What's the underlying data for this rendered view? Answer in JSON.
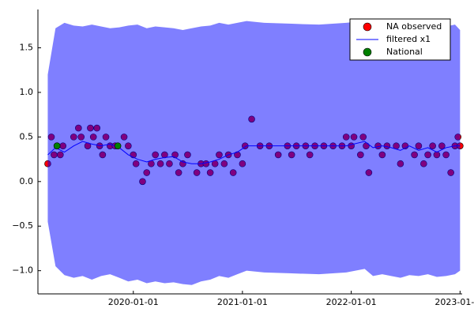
{
  "chart_data": {
    "type": "scatter",
    "xlim": [
      "2019-02-15",
      "2023-01-08"
    ],
    "xticks": [
      "2020-01-01",
      "2021-01-01",
      "2022-01-01",
      "2023-01-01"
    ],
    "ylim": [
      -1.26,
      1.93
    ],
    "yticks": [
      {
        "value": -1,
        "label": "−1.0"
      },
      {
        "value": -0.5,
        "label": "−0.5"
      },
      {
        "value": 0,
        "label": "0.0"
      },
      {
        "value": 0.5,
        "label": "0.5"
      },
      {
        "value": 1,
        "label": "1.0"
      },
      {
        "value": 1.5,
        "label": "1.5"
      }
    ],
    "legend": "top-right",
    "series": [
      {
        "name": "NA observed",
        "color": "#ff0000",
        "x": [
          "2019-03-20",
          "2019-04-01",
          "2019-04-10",
          "2019-04-20",
          "2019-05-01",
          "2019-05-10",
          "2019-06-15",
          "2019-07-01",
          "2019-07-10",
          "2019-08-01",
          "2019-08-10",
          "2019-08-20",
          "2019-09-01",
          "2019-09-10",
          "2019-09-20",
          "2019-10-01",
          "2019-10-15",
          "2019-11-01",
          "2019-12-01",
          "2019-12-15",
          "2020-01-01",
          "2020-01-10",
          "2020-02-01",
          "2020-02-15",
          "2020-03-01",
          "2020-03-15",
          "2020-04-01",
          "2020-04-15",
          "2020-05-01",
          "2020-05-20",
          "2020-06-01",
          "2020-06-15",
          "2020-07-01",
          "2020-08-01",
          "2020-08-15",
          "2020-09-01",
          "2020-09-15",
          "2020-10-01",
          "2020-10-15",
          "2020-11-01",
          "2020-11-15",
          "2020-12-01",
          "2020-12-15",
          "2021-01-01",
          "2021-01-10",
          "2021-02-01",
          "2021-03-01",
          "2021-04-01",
          "2021-05-01",
          "2021-06-01",
          "2021-06-15",
          "2021-07-01",
          "2021-08-01",
          "2021-08-15",
          "2021-09-01",
          "2021-10-01",
          "2021-11-01",
          "2021-12-01",
          "2021-12-15",
          "2022-01-01",
          "2022-01-10",
          "2022-02-01",
          "2022-02-10",
          "2022-02-20",
          "2022-03-01",
          "2022-04-01",
          "2022-04-15",
          "2022-05-01",
          "2022-06-01",
          "2022-06-15",
          "2022-07-01",
          "2022-08-01",
          "2022-08-15",
          "2022-09-01",
          "2022-09-15",
          "2022-10-01",
          "2022-10-15",
          "2022-11-01",
          "2022-11-15",
          "2022-12-01",
          "2022-12-15",
          "2022-12-25",
          "2023-01-01"
        ],
        "values": [
          0.2,
          0.5,
          0.3,
          0.4,
          0.3,
          0.4,
          0.5,
          0.6,
          0.5,
          0.4,
          0.6,
          0.5,
          0.6,
          0.4,
          0.3,
          0.5,
          0.4,
          0.4,
          0.5,
          0.4,
          0.3,
          0.2,
          0.0,
          0.1,
          0.2,
          0.3,
          0.2,
          0.3,
          0.2,
          0.3,
          0.1,
          0.2,
          0.3,
          0.1,
          0.2,
          0.2,
          0.1,
          0.2,
          0.3,
          0.2,
          0.3,
          0.1,
          0.3,
          0.2,
          0.4,
          0.7,
          0.4,
          0.4,
          0.3,
          0.4,
          0.3,
          0.4,
          0.4,
          0.3,
          0.4,
          0.4,
          0.4,
          0.4,
          0.5,
          0.4,
          0.5,
          0.3,
          0.5,
          0.4,
          0.1,
          0.4,
          0.3,
          0.4,
          0.4,
          0.2,
          0.4,
          0.3,
          0.4,
          0.2,
          0.3,
          0.4,
          0.3,
          0.4,
          0.3,
          0.1,
          0.4,
          0.5,
          0.4
        ]
      },
      {
        "name": "filtered x1",
        "color": "#0000ff",
        "x": [
          "2019-03-20",
          "2019-04-15",
          "2019-05-15",
          "2019-06-15",
          "2019-07-15",
          "2019-08-15",
          "2019-09-15",
          "2019-10-15",
          "2019-11-15",
          "2019-12-15",
          "2020-01-15",
          "2020-02-15",
          "2020-03-15",
          "2020-04-15",
          "2020-05-15",
          "2020-06-15",
          "2020-07-15",
          "2020-08-15",
          "2020-09-15",
          "2020-10-15",
          "2020-11-15",
          "2020-12-15",
          "2021-01-15",
          "2021-03-15",
          "2021-06-15",
          "2021-09-15",
          "2021-12-15",
          "2022-02-15",
          "2022-03-15",
          "2022-04-15",
          "2022-05-15",
          "2022-06-15",
          "2022-07-15",
          "2022-08-15",
          "2022-09-15",
          "2022-10-15",
          "2022-11-15",
          "2022-12-15",
          "2023-01-01"
        ],
        "values": [
          0.3,
          0.38,
          0.33,
          0.4,
          0.45,
          0.42,
          0.4,
          0.42,
          0.38,
          0.3,
          0.25,
          0.22,
          0.25,
          0.27,
          0.28,
          0.22,
          0.2,
          0.2,
          0.22,
          0.25,
          0.3,
          0.33,
          0.4,
          0.4,
          0.4,
          0.4,
          0.4,
          0.45,
          0.38,
          0.4,
          0.38,
          0.35,
          0.4,
          0.35,
          0.38,
          0.33,
          0.38,
          0.4,
          0.4
        ],
        "upper": [
          1.2,
          1.72,
          1.78,
          1.75,
          1.74,
          1.76,
          1.74,
          1.72,
          1.73,
          1.75,
          1.76,
          1.72,
          1.74,
          1.73,
          1.72,
          1.7,
          1.72,
          1.74,
          1.75,
          1.78,
          1.76,
          1.78,
          1.8,
          1.78,
          1.77,
          1.76,
          1.78,
          1.8,
          1.74,
          1.76,
          1.74,
          1.72,
          1.75,
          1.74,
          1.76,
          1.73,
          1.74,
          1.76,
          1.7
        ],
        "lower": [
          -0.45,
          -0.95,
          -1.05,
          -1.08,
          -1.06,
          -1.1,
          -1.06,
          -1.04,
          -1.08,
          -1.12,
          -1.1,
          -1.14,
          -1.12,
          -1.14,
          -1.13,
          -1.15,
          -1.16,
          -1.12,
          -1.1,
          -1.06,
          -1.08,
          -1.04,
          -1.0,
          -1.02,
          -1.03,
          -1.04,
          -1.02,
          -0.98,
          -1.06,
          -1.04,
          -1.06,
          -1.08,
          -1.05,
          -1.06,
          -1.04,
          -1.07,
          -1.06,
          -1.04,
          -1.0
        ]
      },
      {
        "name": "National",
        "color": "#008000",
        "x": [
          "2019-04-20",
          "2019-11-10"
        ],
        "values": [
          0.4,
          0.4
        ]
      }
    ]
  }
}
